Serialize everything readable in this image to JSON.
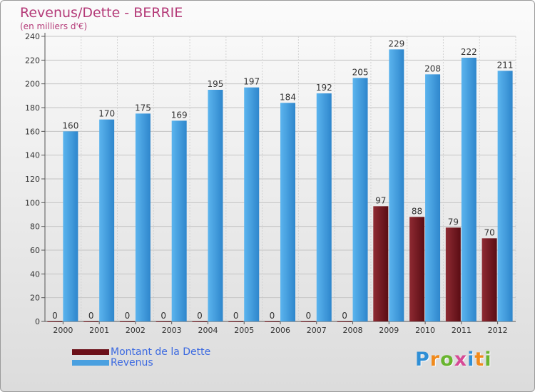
{
  "title": "Revenus/Dette - BERRIE",
  "subtitle": "(en milliers d'€)",
  "logo": {
    "text": "Proxiti",
    "colors": [
      "#2f8fd6",
      "#f08a1c",
      "#69b52f",
      "#d64a95",
      "#2f8fd6",
      "#f08a1c",
      "#69b52f"
    ]
  },
  "chart_data": {
    "type": "bar",
    "categories": [
      "2000",
      "2001",
      "2002",
      "2003",
      "2004",
      "2005",
      "2006",
      "2007",
      "2008",
      "2009",
      "2010",
      "2011",
      "2012"
    ],
    "series": [
      {
        "name": "Montant de la Dette",
        "color": "#7a1a22",
        "values": [
          0,
          0,
          0,
          0,
          0,
          0,
          0,
          0,
          0,
          97,
          88,
          79,
          70
        ]
      },
      {
        "name": "Revenus",
        "color": "#4aa0e0",
        "values": [
          160,
          170,
          175,
          169,
          195,
          197,
          184,
          192,
          205,
          229,
          208,
          222,
          211
        ]
      }
    ],
    "yticks": [
      0,
      20,
      40,
      60,
      80,
      100,
      120,
      140,
      160,
      180,
      200,
      220,
      240
    ],
    "ylim": [
      0,
      240
    ],
    "grid": true,
    "legend": "bottom-left"
  }
}
